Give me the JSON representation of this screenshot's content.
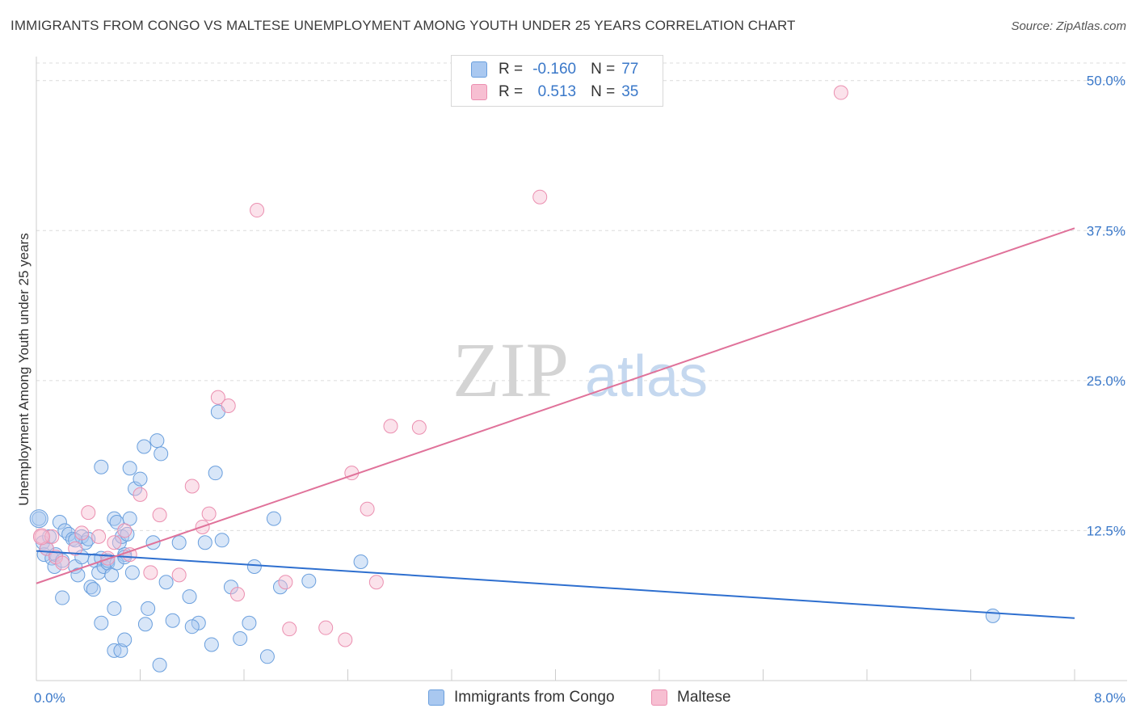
{
  "header": {
    "title": "IMMIGRANTS FROM CONGO VS MALTESE UNEMPLOYMENT AMONG YOUTH UNDER 25 YEARS CORRELATION CHART",
    "source": "Source: ZipAtlas.com"
  },
  "watermark": {
    "zip": "ZIP",
    "atlas": "atlas"
  },
  "legend": {
    "r_label": "R =",
    "n_label": "N =",
    "rows": [
      {
        "r": "-0.160",
        "n": "77"
      },
      {
        "r": "0.513",
        "n": "35"
      }
    ]
  },
  "colors": {
    "congo_fill": "#a9c8f0",
    "congo_stroke": "#6a9fdd",
    "congo_line": "#2e6fcf",
    "maltese_fill": "#f7bfd2",
    "maltese_stroke": "#eb8fb0",
    "maltese_line": "#e0729a",
    "axis_label": "#3a78c9",
    "grid": "#dcdcdc"
  },
  "chart_data": {
    "type": "scatter",
    "title": "IMMIGRANTS FROM CONGO VS MALTESE UNEMPLOYMENT AMONG YOUTH UNDER 25 YEARS CORRELATION CHART",
    "xlabel": "",
    "ylabel": "Unemployment Among Youth under 25 years",
    "xlim": [
      0,
      8
    ],
    "ylim": [
      0,
      52
    ],
    "x_tick_labels": [
      "0.0%",
      "8.0%"
    ],
    "y_ticks": [
      12.5,
      25.0,
      37.5,
      50.0
    ],
    "y_tick_labels": [
      "12.5%",
      "25.0%",
      "37.5%",
      "50.0%"
    ],
    "legend_position": "bottom-center",
    "series": [
      {
        "name": "Immigrants from Congo",
        "r": -0.16,
        "n": 77,
        "trend": {
          "x0": 0,
          "y0": 10.8,
          "x1": 8,
          "y1": 5.2
        },
        "points": [
          [
            0.02,
            13.5
          ],
          [
            0.05,
            11.5
          ],
          [
            0.06,
            10.5
          ],
          [
            0.08,
            11.0
          ],
          [
            0.1,
            12.0
          ],
          [
            0.12,
            10.2
          ],
          [
            0.14,
            9.5
          ],
          [
            0.15,
            10.5
          ],
          [
            0.18,
            13.2
          ],
          [
            0.2,
            10.0
          ],
          [
            0.22,
            12.5
          ],
          [
            0.25,
            12.2
          ],
          [
            0.28,
            11.8
          ],
          [
            0.3,
            9.5
          ],
          [
            0.32,
            8.8
          ],
          [
            0.35,
            12.0
          ],
          [
            0.38,
            11.5
          ],
          [
            0.4,
            11.8
          ],
          [
            0.42,
            7.8
          ],
          [
            0.45,
            10.0
          ],
          [
            0.48,
            9.0
          ],
          [
            0.5,
            10.2
          ],
          [
            0.52,
            9.5
          ],
          [
            0.55,
            9.8
          ],
          [
            0.58,
            8.8
          ],
          [
            0.6,
            13.5
          ],
          [
            0.62,
            13.2
          ],
          [
            0.64,
            11.5
          ],
          [
            0.66,
            12.0
          ],
          [
            0.68,
            10.5
          ],
          [
            0.7,
            12.2
          ],
          [
            0.72,
            13.5
          ],
          [
            0.74,
            9.0
          ],
          [
            0.76,
            16.0
          ],
          [
            0.8,
            16.8
          ],
          [
            0.83,
            19.5
          ],
          [
            0.86,
            6.0
          ],
          [
            0.9,
            11.5
          ],
          [
            0.93,
            20.0
          ],
          [
            0.96,
            18.9
          ],
          [
            1.0,
            8.2
          ],
          [
            1.05,
            5.0
          ],
          [
            1.1,
            11.5
          ],
          [
            1.18,
            7.0
          ],
          [
            1.25,
            4.8
          ],
          [
            1.3,
            11.5
          ],
          [
            1.38,
            17.3
          ],
          [
            1.43,
            11.7
          ],
          [
            1.5,
            7.8
          ],
          [
            1.57,
            3.5
          ],
          [
            1.64,
            4.8
          ],
          [
            1.68,
            9.5
          ],
          [
            1.78,
            2.0
          ],
          [
            1.83,
            13.5
          ],
          [
            0.5,
            17.8
          ],
          [
            0.5,
            4.8
          ],
          [
            0.6,
            2.5
          ],
          [
            0.65,
            2.5
          ],
          [
            0.68,
            3.4
          ],
          [
            0.84,
            4.7
          ],
          [
            0.95,
            1.3
          ],
          [
            0.6,
            6.0
          ],
          [
            0.2,
            6.9
          ],
          [
            0.3,
            11.7
          ],
          [
            0.35,
            10.3
          ],
          [
            0.44,
            7.6
          ],
          [
            0.55,
            10.0
          ],
          [
            0.62,
            9.8
          ],
          [
            0.68,
            10.3
          ],
          [
            0.72,
            17.7
          ],
          [
            1.4,
            22.4
          ],
          [
            1.88,
            7.8
          ],
          [
            2.1,
            8.3
          ],
          [
            2.5,
            9.9
          ],
          [
            1.2,
            4.5
          ],
          [
            1.35,
            3.0
          ],
          [
            7.37,
            5.4
          ]
        ]
      },
      {
        "name": "Maltese",
        "r": 0.513,
        "n": 35,
        "trend": {
          "x0": 0,
          "y0": 8.1,
          "x1": 8,
          "y1": 37.7
        },
        "points": [
          [
            0.04,
            12.0
          ],
          [
            0.08,
            11.0
          ],
          [
            0.12,
            12.0
          ],
          [
            0.15,
            10.3
          ],
          [
            0.2,
            9.8
          ],
          [
            0.3,
            11.0
          ],
          [
            0.35,
            12.3
          ],
          [
            0.4,
            14.0
          ],
          [
            0.48,
            12.0
          ],
          [
            0.55,
            10.2
          ],
          [
            0.6,
            11.5
          ],
          [
            0.68,
            12.5
          ],
          [
            0.72,
            10.5
          ],
          [
            0.8,
            15.5
          ],
          [
            0.88,
            9.0
          ],
          [
            0.95,
            13.8
          ],
          [
            1.1,
            8.8
          ],
          [
            1.2,
            16.2
          ],
          [
            1.28,
            12.8
          ],
          [
            1.33,
            13.9
          ],
          [
            1.4,
            23.6
          ],
          [
            1.48,
            22.9
          ],
          [
            1.55,
            7.2
          ],
          [
            1.7,
            39.2
          ],
          [
            1.92,
            8.2
          ],
          [
            1.95,
            4.3
          ],
          [
            2.23,
            4.4
          ],
          [
            2.38,
            3.4
          ],
          [
            2.43,
            17.3
          ],
          [
            2.55,
            14.3
          ],
          [
            2.62,
            8.2
          ],
          [
            2.73,
            21.2
          ],
          [
            2.95,
            21.1
          ],
          [
            3.88,
            40.3
          ],
          [
            6.2,
            49.0
          ]
        ]
      }
    ]
  }
}
